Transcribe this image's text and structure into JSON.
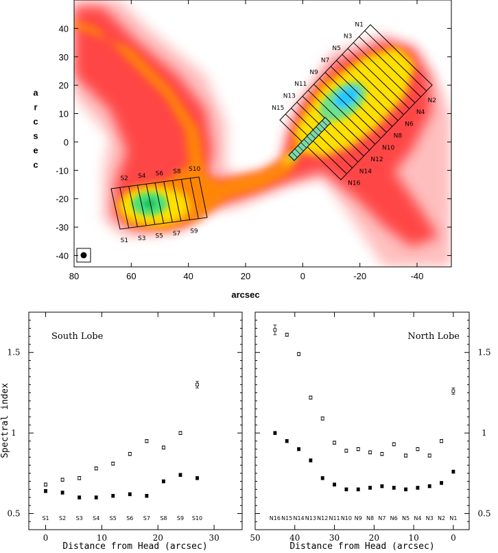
{
  "chart_data": [
    {
      "type": "image",
      "xlabel": "arcsec",
      "ylabel": "arcsec",
      "xlim": [
        80,
        -52
      ],
      "ylim": [
        -44,
        50
      ],
      "xticks": [
        80,
        60,
        40,
        20,
        0,
        -20,
        -40
      ],
      "yticks": [
        40,
        30,
        20,
        10,
        0,
        -10,
        -20,
        -30,
        -40
      ],
      "south_labels": [
        "S1",
        "S2",
        "S3",
        "S4",
        "S5",
        "S6",
        "S7",
        "S8",
        "S9",
        "S10"
      ],
      "north_labels": [
        "N1",
        "N2",
        "N3",
        "N4",
        "N5",
        "N6",
        "N7",
        "N8",
        "N9",
        "N10",
        "N11",
        "N12",
        "N13",
        "N14",
        "N15",
        "N16"
      ],
      "colormap": [
        "#ff0000",
        "#ff8000",
        "#ffff00",
        "#00ff80",
        "#00c0ff"
      ]
    },
    {
      "type": "scatter",
      "title": "South Lobe",
      "xlabel": "Distance from Head (arcsec)",
      "ylabel": "Spectral index",
      "xlim": [
        -3,
        35
      ],
      "ylim": [
        0.4,
        1.75
      ],
      "xticks": [
        0,
        10,
        20,
        30
      ],
      "yticks": [
        0.5,
        1,
        1.5
      ],
      "ytick_labels": [
        "0.5",
        "1",
        "1.5"
      ],
      "categories": [
        "S1",
        "S2",
        "S3",
        "S4",
        "S5",
        "S6",
        "S7",
        "S8",
        "S9",
        "S10"
      ],
      "x": [
        0,
        3,
        6,
        9,
        12,
        15,
        18,
        21,
        24,
        27
      ],
      "series": [
        {
          "marker": "open-square",
          "values": [
            0.68,
            0.71,
            0.72,
            0.78,
            0.81,
            0.87,
            0.95,
            0.91,
            1.0,
            1.3
          ],
          "err": [
            0.01,
            0.01,
            0.01,
            0.01,
            0.01,
            0.01,
            0.01,
            0.01,
            0.01,
            0.02
          ]
        },
        {
          "marker": "filled-square",
          "values": [
            0.64,
            0.63,
            0.6,
            0.6,
            0.61,
            0.62,
            0.61,
            0.7,
            0.74,
            0.72
          ],
          "err": [
            0.01,
            0.01,
            0.01,
            0.01,
            0.01,
            0.01,
            0.01,
            0.01,
            0.01,
            0.01
          ]
        }
      ]
    },
    {
      "type": "scatter",
      "title": "North Lobe",
      "xlabel": "Distance from Head (arcsec)",
      "ylabel": "",
      "xlim": [
        50,
        -4
      ],
      "ylim": [
        0.4,
        1.75
      ],
      "xticks": [
        50,
        40,
        30,
        20,
        10,
        0
      ],
      "yticks": [
        0.5,
        1,
        1.5
      ],
      "ytick_labels": [
        "0.5",
        "1",
        "1.5"
      ],
      "categories": [
        "N16",
        "N15",
        "N14",
        "N13",
        "N12",
        "N11",
        "N10",
        "N9",
        "N8",
        "N7",
        "N6",
        "N5",
        "N4",
        "N3",
        "N2",
        "N1"
      ],
      "x": [
        45,
        42,
        39,
        36,
        33,
        30,
        27,
        24,
        21,
        18,
        15,
        12,
        9,
        6,
        3,
        0
      ],
      "series": [
        {
          "marker": "open-square",
          "values": [
            1.64,
            1.61,
            1.49,
            1.22,
            1.09,
            0.94,
            0.89,
            0.9,
            0.88,
            0.87,
            0.93,
            0.86,
            0.9,
            0.86,
            0.95,
            1.26
          ],
          "err": [
            0.03,
            0.01,
            0.01,
            0.01,
            0.01,
            0.01,
            0.01,
            0.01,
            0.01,
            0.01,
            0.01,
            0.01,
            0.01,
            0.01,
            0.01,
            0.02
          ]
        },
        {
          "marker": "filled-square",
          "values": [
            1.0,
            0.95,
            0.9,
            0.83,
            0.72,
            0.68,
            0.65,
            0.65,
            0.66,
            0.67,
            0.66,
            0.65,
            0.66,
            0.67,
            0.69,
            0.76
          ],
          "err": [
            0.01,
            0.01,
            0.01,
            0.01,
            0.01,
            0.01,
            0.01,
            0.01,
            0.01,
            0.01,
            0.01,
            0.01,
            0.01,
            0.01,
            0.01,
            0.01
          ]
        }
      ]
    }
  ]
}
